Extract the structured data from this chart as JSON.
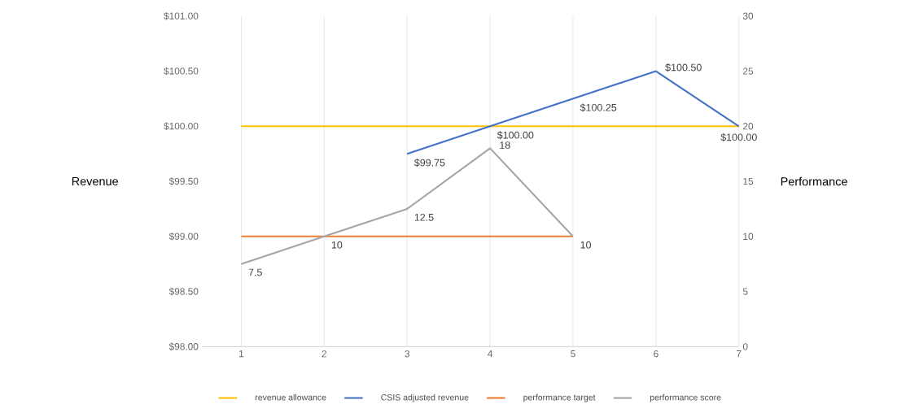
{
  "chart_data": {
    "type": "line",
    "categories": [
      "1",
      "2",
      "3",
      "4",
      "5",
      "6",
      "7"
    ],
    "ylabel": "Revenue",
    "y2label": "Performance",
    "ylim": [
      98,
      101
    ],
    "yticks": [
      {
        "value": 98,
        "label": "$98.00"
      },
      {
        "value": 98.5,
        "label": "$98.50"
      },
      {
        "value": 99,
        "label": "$99.00"
      },
      {
        "value": 99.5,
        "label": "$99.50"
      },
      {
        "value": 100,
        "label": "$100.00"
      },
      {
        "value": 100.5,
        "label": "$100.50"
      },
      {
        "value": 101,
        "label": "$101.00"
      }
    ],
    "y2lim": [
      0,
      30
    ],
    "y2ticks": [
      0,
      5,
      10,
      15,
      20,
      25,
      30
    ],
    "grid": "x",
    "legend": "bottom",
    "marker": "none",
    "series": [
      {
        "name": "revenue allowance",
        "color": "#ffc000",
        "values": [
          100,
          100,
          100,
          100,
          100,
          100,
          100
        ]
      },
      {
        "name": "CSIS adjusted revenue",
        "color": "#4472c4",
        "values": [
          null,
          null,
          99.75,
          100,
          100.25,
          100.5,
          100
        ],
        "value_labels": [
          null,
          null,
          "$99.75",
          "$100.00",
          "$100.25",
          "$100.50",
          "$100.00"
        ]
      },
      {
        "name": "performance target",
        "color": "#ed7d31",
        "axis": "y2",
        "values": [
          10,
          10,
          10,
          10,
          10,
          null,
          null
        ]
      },
      {
        "name": "performance score",
        "color": "#a5a5a5",
        "axis": "y2",
        "values": [
          7.5,
          10,
          12.5,
          18,
          10,
          null,
          null
        ],
        "value_labels": [
          "7.5",
          "10",
          "12.5",
          "18",
          "10",
          null,
          null
        ]
      }
    ]
  }
}
